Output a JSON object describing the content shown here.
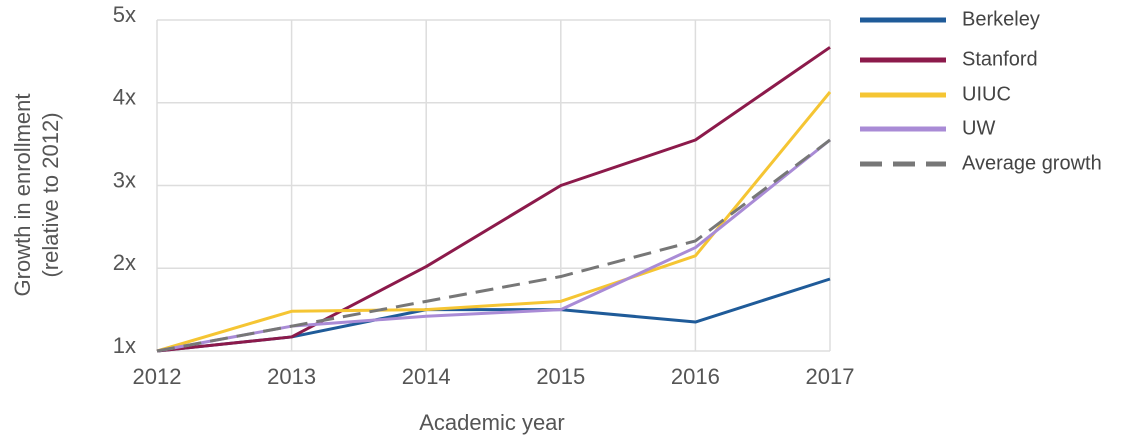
{
  "chart_data": {
    "type": "line",
    "xlabel": "Academic year",
    "ylabel": [
      "Growth in enrollment",
      "(relative to 2012)"
    ],
    "x": [
      2012,
      2013,
      2014,
      2015,
      2016,
      2017
    ],
    "xlim": [
      2012,
      2017
    ],
    "xticks": [
      2012,
      2013,
      2014,
      2015,
      2016,
      2017
    ],
    "ylim": [
      1,
      5
    ],
    "yticks": [
      {
        "value": 1,
        "label": "1x"
      },
      {
        "value": 2,
        "label": "2x"
      },
      {
        "value": 3,
        "label": "3x"
      },
      {
        "value": 4,
        "label": "4x"
      },
      {
        "value": 5,
        "label": "5x"
      }
    ],
    "grid": true,
    "legend": "right",
    "series": [
      {
        "name": "Berkeley",
        "color": "#1f5b99",
        "values": [
          1,
          1.17,
          1.5,
          1.5,
          1.35,
          1.87
        ]
      },
      {
        "name": "Stanford",
        "color": "#8c1a4b",
        "values": [
          1,
          1.17,
          2.02,
          3.0,
          3.55,
          4.67
        ]
      },
      {
        "name": "UIUC",
        "color": "#f5c533",
        "values": [
          1,
          1.48,
          1.5,
          1.6,
          2.15,
          4.13
        ]
      },
      {
        "name": "UW",
        "color": "#a98bd6",
        "values": [
          1,
          1.3,
          1.42,
          1.5,
          2.25,
          3.55
        ]
      },
      {
        "name": "Average growth",
        "color": "#777777",
        "style": "dashed",
        "values": [
          1,
          1.3,
          1.6,
          1.9,
          2.33,
          3.55
        ]
      }
    ]
  }
}
